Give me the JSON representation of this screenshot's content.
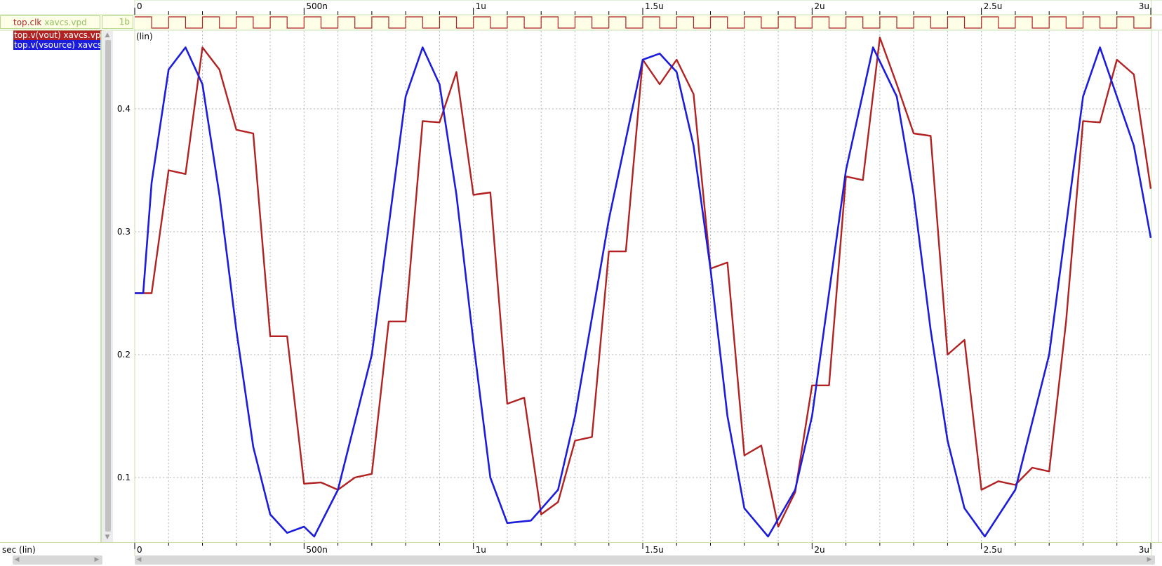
{
  "signals": {
    "clk": {
      "name": "top.clk",
      "source": "xavcs.vpd",
      "type": "1b",
      "color": "#b22222",
      "source_color": "#8fbf5a"
    },
    "analog": [
      {
        "label": "top.v(vout) xavcs.vp",
        "color": "#b22222"
      },
      {
        "label": "top.v(vsource) xavcs",
        "color": "#1c1cdc"
      }
    ]
  },
  "axis": {
    "x_label": "sec (lin)",
    "x_ticks_top": [
      "0",
      "500n",
      "1u",
      "1.5u",
      "2u",
      "2.5u",
      "3u"
    ],
    "x_ticks_bottom": [
      "0",
      "500n",
      "1u",
      "1.5u",
      "2u",
      "2.5u",
      "3u"
    ],
    "y_scale_label": "(lin)",
    "y_ticks": [
      "0.4",
      "0.3",
      "0.2",
      "0.1"
    ]
  },
  "scroll": {
    "up": "▲",
    "down": "▼",
    "left": "◀",
    "right": "▶"
  },
  "chart_data": {
    "type": "line",
    "xlabel": "sec (lin)",
    "ylabel": "(lin)",
    "x_unit": "s",
    "xlim": [
      0,
      3e-06
    ],
    "ylim": [
      0.05,
      0.46
    ],
    "grid": true,
    "clock": {
      "name": "top.clk",
      "period": 1e-07,
      "values": [
        0,
        1
      ]
    },
    "series": [
      {
        "name": "top.v(vout) xavcs.vp",
        "color": "#b22222",
        "x": [
          0,
          5e-08,
          1e-07,
          1.5e-07,
          2e-07,
          2.5e-07,
          3e-07,
          3.5e-07,
          4e-07,
          4.5e-07,
          5e-07,
          5.5e-07,
          6e-07,
          6.5e-07,
          7e-07,
          7.5e-07,
          8e-07,
          8.5e-07,
          9e-07,
          9.5e-07,
          1e-06,
          1.05e-06,
          1.1e-06,
          1.15e-06,
          1.2e-06,
          1.25e-06,
          1.3e-06,
          1.35e-06,
          1.4e-06,
          1.45e-06,
          1.5e-06,
          1.55e-06,
          1.6e-06,
          1.65e-06,
          1.7e-06,
          1.75e-06,
          1.8e-06,
          1.85e-06,
          1.9e-06,
          1.95e-06,
          2e-06,
          2.05e-06,
          2.1e-06,
          2.15e-06,
          2.2e-06,
          2.25e-06,
          2.3e-06,
          2.35e-06,
          2.4e-06,
          2.45e-06,
          2.5e-06,
          2.55e-06,
          2.6e-06,
          2.65e-06,
          2.7e-06,
          2.75e-06,
          2.8e-06,
          2.85e-06,
          2.9e-06,
          2.95e-06,
          3e-06
        ],
        "y": [
          0.25,
          0.25,
          0.35,
          0.347,
          0.45,
          0.432,
          0.383,
          0.38,
          0.215,
          0.215,
          0.095,
          0.096,
          0.09,
          0.1,
          0.103,
          0.227,
          0.227,
          0.39,
          0.389,
          0.43,
          0.33,
          0.332,
          0.16,
          0.165,
          0.07,
          0.08,
          0.13,
          0.133,
          0.284,
          0.284,
          0.44,
          0.42,
          0.44,
          0.412,
          0.27,
          0.275,
          0.118,
          0.126,
          0.06,
          0.088,
          0.175,
          0.175,
          0.345,
          0.342,
          0.458,
          0.42,
          0.38,
          0.378,
          0.2,
          0.212,
          0.09,
          0.097,
          0.094,
          0.108,
          0.105,
          0.227,
          0.39,
          0.389,
          0.44,
          0.428,
          0.335
        ]
      },
      {
        "name": "top.v(vsource) xavcs",
        "color": "#1c1cdc",
        "x": [
          0,
          2.5e-08,
          5e-08,
          1e-07,
          1.5e-07,
          2e-07,
          2.5e-07,
          3e-07,
          3.5e-07,
          4e-07,
          4.5e-07,
          5e-07,
          5.3e-07,
          6e-07,
          7e-07,
          8e-07,
          8.5e-07,
          9e-07,
          9.5e-07,
          1e-06,
          1.05e-06,
          1.1e-06,
          1.17e-06,
          1.25e-06,
          1.3e-06,
          1.4e-06,
          1.5e-06,
          1.55e-06,
          1.6e-06,
          1.65e-06,
          1.7e-06,
          1.75e-06,
          1.8e-06,
          1.87e-06,
          1.95e-06,
          2e-06,
          2.1e-06,
          2.18e-06,
          2.25e-06,
          2.3e-06,
          2.35e-06,
          2.4e-06,
          2.45e-06,
          2.51e-06,
          2.6e-06,
          2.7e-06,
          2.8e-06,
          2.85e-06,
          2.9e-06,
          2.95e-06,
          3e-06
        ],
        "y": [
          0.25,
          0.25,
          0.34,
          0.432,
          0.45,
          0.42,
          0.33,
          0.22,
          0.125,
          0.07,
          0.055,
          0.06,
          0.052,
          0.09,
          0.2,
          0.41,
          0.45,
          0.42,
          0.33,
          0.21,
          0.1,
          0.063,
          0.065,
          0.09,
          0.15,
          0.31,
          0.44,
          0.445,
          0.43,
          0.37,
          0.27,
          0.15,
          0.075,
          0.052,
          0.09,
          0.15,
          0.35,
          0.45,
          0.41,
          0.33,
          0.22,
          0.13,
          0.075,
          0.052,
          0.09,
          0.2,
          0.41,
          0.45,
          0.41,
          0.37,
          0.295
        ]
      }
    ]
  }
}
